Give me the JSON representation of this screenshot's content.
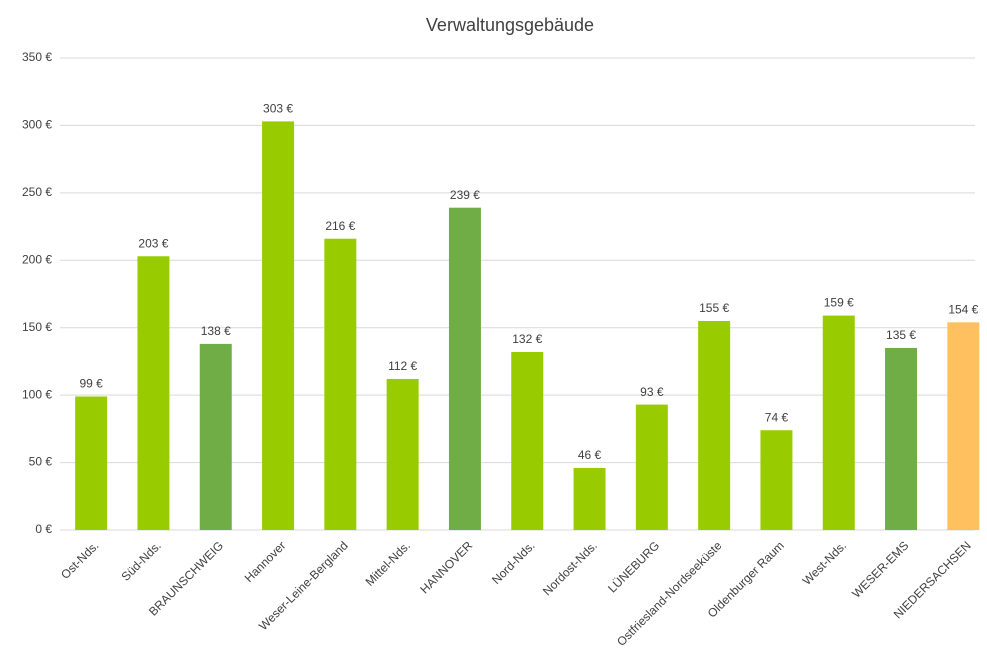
{
  "chart_data": {
    "type": "bar",
    "title": "Verwaltungsgebäude",
    "categories": [
      "Ost-Nds.",
      "Süd-Nds.",
      "BRAUNSCHWEIG",
      "Hannover",
      "Weser-Leine-Bergland",
      "Mittel-Nds.",
      "HANNOVER",
      "Nord-Nds.",
      "Nordost-Nds.",
      "LÜNEBURG",
      "Ostfriesland-Nordseeküste",
      "Oldenburger Raum",
      "West-Nds.",
      "WESER-EMS",
      "NIEDERSACHSEN"
    ],
    "values": [
      99,
      203,
      138,
      303,
      216,
      112,
      239,
      132,
      46,
      93,
      155,
      74,
      159,
      135,
      154
    ],
    "value_labels": [
      "99 €",
      "203 €",
      "138 €",
      "303 €",
      "216 €",
      "112 €",
      "239 €",
      "132 €",
      "46 €",
      "93 €",
      "155 €",
      "74 €",
      "159 €",
      "135 €",
      "154 €"
    ],
    "colors": [
      "#99cc00",
      "#99cc00",
      "#70ad47",
      "#99cc00",
      "#99cc00",
      "#99cc00",
      "#70ad47",
      "#99cc00",
      "#99cc00",
      "#99cc00",
      "#99cc00",
      "#99cc00",
      "#99cc00",
      "#70ad47",
      "#ffc060"
    ],
    "ylim": [
      0,
      350
    ],
    "yticks": [
      {
        "value": 0,
        "label": "0 €"
      },
      {
        "value": 50,
        "label": "50 €"
      },
      {
        "value": 100,
        "label": "100 €"
      },
      {
        "value": 150,
        "label": "150 €"
      },
      {
        "value": 200,
        "label": "200 €"
      },
      {
        "value": 250,
        "label": "250 €"
      },
      {
        "value": 300,
        "label": "300 €"
      },
      {
        "value": 350,
        "label": "350 €"
      }
    ],
    "grid": true
  }
}
